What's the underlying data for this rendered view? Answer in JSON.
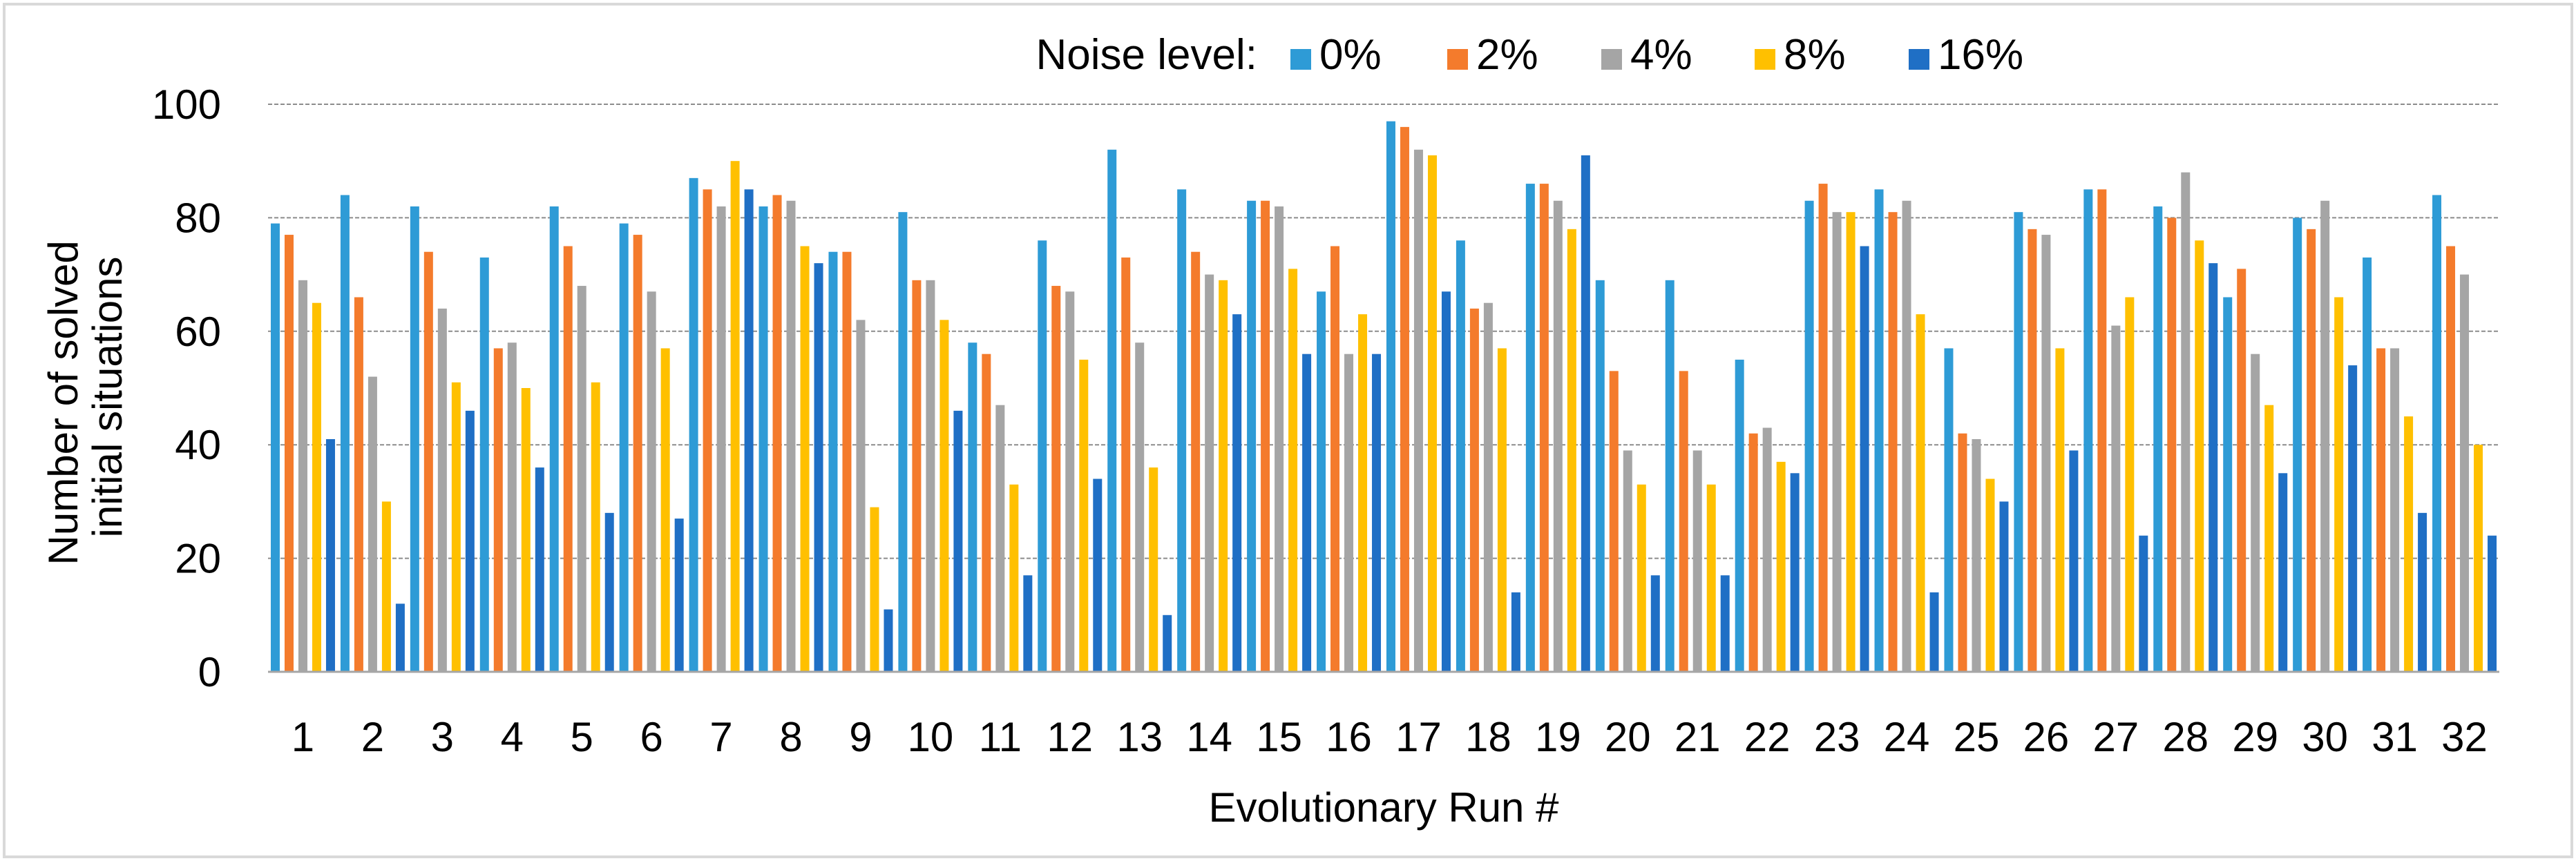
{
  "chart_data": {
    "type": "bar",
    "title": "",
    "xlabel": "Evolutionary Run #",
    "ylabel_lines": [
      "Number of solved",
      "initial situations"
    ],
    "ylim": [
      0,
      100
    ],
    "yticks": [
      0,
      20,
      40,
      60,
      80,
      100
    ],
    "grid": "horizontal",
    "legend": {
      "title": "Noise level:",
      "placement": "top-center"
    },
    "categories": [
      "1",
      "2",
      "3",
      "4",
      "5",
      "6",
      "7",
      "8",
      "9",
      "10",
      "11",
      "12",
      "13",
      "14",
      "15",
      "16",
      "17",
      "18",
      "19",
      "20",
      "21",
      "22",
      "23",
      "24",
      "25",
      "26",
      "27",
      "28",
      "29",
      "30",
      "31",
      "32"
    ],
    "series": [
      {
        "name": "0%",
        "color": "#2e9bd6",
        "values": [
          79,
          84,
          82,
          73,
          82,
          79,
          87,
          82,
          74,
          81,
          58,
          76,
          92,
          85,
          83,
          67,
          97,
          76,
          86,
          69,
          69,
          55,
          83,
          85,
          57,
          81,
          85,
          82,
          66,
          80,
          73,
          84
        ]
      },
      {
        "name": "2%",
        "color": "#f47b2c",
        "values": [
          77,
          66,
          74,
          57,
          75,
          77,
          85,
          84,
          74,
          69,
          56,
          68,
          73,
          74,
          83,
          75,
          96,
          64,
          86,
          53,
          53,
          42,
          86,
          81,
          42,
          78,
          85,
          80,
          71,
          78,
          57,
          75
        ]
      },
      {
        "name": "4%",
        "color": "#a5a5a5",
        "values": [
          69,
          52,
          64,
          58,
          68,
          67,
          82,
          83,
          62,
          69,
          47,
          67,
          58,
          70,
          82,
          56,
          92,
          65,
          83,
          39,
          39,
          43,
          81,
          83,
          41,
          77,
          61,
          88,
          56,
          83,
          57,
          70
        ]
      },
      {
        "name": "8%",
        "color": "#ffc000",
        "values": [
          65,
          30,
          51,
          50,
          51,
          57,
          90,
          75,
          29,
          62,
          33,
          55,
          36,
          69,
          71,
          63,
          91,
          57,
          78,
          33,
          33,
          37,
          81,
          63,
          34,
          57,
          66,
          76,
          47,
          66,
          45,
          40
        ]
      },
      {
        "name": "16%",
        "color": "#1f6fc5",
        "values": [
          41,
          12,
          46,
          36,
          28,
          27,
          85,
          72,
          11,
          46,
          17,
          34,
          10,
          63,
          56,
          56,
          67,
          14,
          91,
          17,
          17,
          35,
          75,
          14,
          30,
          39,
          24,
          72,
          35,
          54,
          28,
          24
        ]
      }
    ]
  }
}
